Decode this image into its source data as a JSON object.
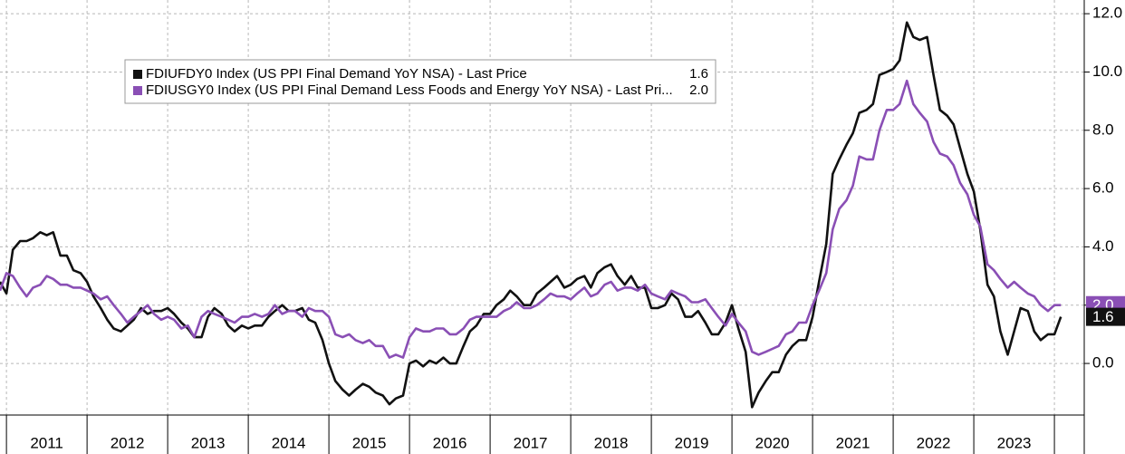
{
  "chart_data": {
    "type": "line",
    "x": [
      2010.92,
      2011.0,
      2011.08,
      2011.17,
      2011.25,
      2011.33,
      2011.42,
      2011.5,
      2011.58,
      2011.67,
      2011.75,
      2011.83,
      2011.92,
      2012.0,
      2012.08,
      2012.17,
      2012.25,
      2012.33,
      2012.42,
      2012.5,
      2012.58,
      2012.67,
      2012.75,
      2012.83,
      2012.92,
      2013.0,
      2013.08,
      2013.17,
      2013.25,
      2013.33,
      2013.42,
      2013.5,
      2013.58,
      2013.67,
      2013.75,
      2013.83,
      2013.92,
      2014.0,
      2014.08,
      2014.17,
      2014.25,
      2014.33,
      2014.42,
      2014.5,
      2014.58,
      2014.67,
      2014.75,
      2014.83,
      2014.92,
      2015.0,
      2015.08,
      2015.17,
      2015.25,
      2015.33,
      2015.42,
      2015.5,
      2015.58,
      2015.67,
      2015.75,
      2015.83,
      2015.92,
      2016.0,
      2016.08,
      2016.17,
      2016.25,
      2016.33,
      2016.42,
      2016.5,
      2016.58,
      2016.67,
      2016.75,
      2016.83,
      2016.92,
      2017.0,
      2017.08,
      2017.17,
      2017.25,
      2017.33,
      2017.42,
      2017.5,
      2017.58,
      2017.67,
      2017.75,
      2017.83,
      2017.92,
      2018.0,
      2018.08,
      2018.17,
      2018.25,
      2018.33,
      2018.42,
      2018.5,
      2018.58,
      2018.67,
      2018.75,
      2018.83,
      2018.92,
      2019.0,
      2019.08,
      2019.17,
      2019.25,
      2019.33,
      2019.42,
      2019.5,
      2019.58,
      2019.67,
      2019.75,
      2019.83,
      2019.92,
      2020.0,
      2020.08,
      2020.17,
      2020.25,
      2020.33,
      2020.42,
      2020.5,
      2020.58,
      2020.67,
      2020.75,
      2020.83,
      2020.92,
      2021.0,
      2021.08,
      2021.17,
      2021.25,
      2021.33,
      2021.42,
      2021.5,
      2021.58,
      2021.67,
      2021.75,
      2021.83,
      2021.92,
      2022.0,
      2022.08,
      2022.17,
      2022.25,
      2022.33,
      2022.42,
      2022.5,
      2022.58,
      2022.67,
      2022.75,
      2022.83,
      2022.92,
      2023.0,
      2023.08,
      2023.17,
      2023.25,
      2023.33,
      2023.42,
      2023.5,
      2023.58,
      2023.67,
      2023.75,
      2023.83,
      2023.92,
      2024.0,
      2024.08
    ],
    "series": [
      {
        "name": "FDIUFDY0 Index (US PPI Final Demand YoY NSA) - Last Price",
        "color": "#111111",
        "last_label": "1.6",
        "values": [
          2.8,
          2.4,
          3.9,
          4.2,
          4.2,
          4.3,
          4.5,
          4.4,
          4.5,
          3.7,
          3.7,
          3.2,
          3.1,
          2.8,
          2.3,
          1.9,
          1.5,
          1.2,
          1.1,
          1.3,
          1.5,
          1.9,
          1.7,
          1.8,
          1.8,
          1.9,
          1.7,
          1.4,
          1.2,
          0.9,
          0.9,
          1.6,
          1.9,
          1.7,
          1.3,
          1.1,
          1.3,
          1.2,
          1.3,
          1.3,
          1.6,
          1.8,
          2.0,
          1.8,
          1.8,
          1.9,
          1.5,
          1.4,
          0.8,
          0,
          -0.6,
          -0.9,
          -1.1,
          -0.9,
          -0.7,
          -0.8,
          -1.0,
          -1.1,
          -1.4,
          -1.2,
          -1.1,
          0,
          0.1,
          -0.1,
          0.1,
          0,
          0.2,
          0,
          0,
          0.6,
          1.1,
          1.3,
          1.7,
          1.7,
          2.0,
          2.2,
          2.5,
          2.3,
          2.0,
          2.0,
          2.4,
          2.6,
          2.8,
          3.0,
          2.6,
          2.7,
          2.9,
          3.0,
          2.6,
          3.1,
          3.3,
          3.4,
          3.0,
          2.7,
          3.0,
          2.6,
          2.6,
          1.9,
          1.9,
          2.0,
          2.4,
          2.2,
          1.6,
          1.6,
          1.8,
          1.4,
          1.0,
          1.0,
          1.4,
          2.0,
          1.2,
          0.4,
          -1.5,
          -1.0,
          -0.6,
          -0.3,
          -0.3,
          0.3,
          0.6,
          0.8,
          0.8,
          1.6,
          2.8,
          4.1,
          6.5,
          7.0,
          7.5,
          7.9,
          8.6,
          8.7,
          8.9,
          9.9,
          10.0,
          10.1,
          10.4,
          11.7,
          11.2,
          11.1,
          11.2,
          9.9,
          8.7,
          8.5,
          8.2,
          7.4,
          6.5,
          5.9,
          4.6,
          2.7,
          2.3,
          1.1,
          0.3,
          1.1,
          1.9,
          1.8,
          1.1,
          0.8,
          1.0,
          1.0,
          1.6
        ]
      },
      {
        "name": "FDIUSGY0 Index (US PPI Final Demand Less Foods and Energy YoY NSA) - Last Pri...",
        "color": "#8a4fb5",
        "last_label": "2.0",
        "values": [
          2.5,
          3.1,
          3.0,
          2.6,
          2.3,
          2.6,
          2.7,
          3.0,
          2.9,
          2.7,
          2.7,
          2.6,
          2.6,
          2.5,
          2.4,
          2.2,
          2.3,
          2.0,
          1.7,
          1.4,
          1.6,
          1.8,
          2.0,
          1.7,
          1.5,
          1.6,
          1.5,
          1.2,
          1.3,
          0.9,
          1.6,
          1.8,
          1.7,
          1.6,
          1.5,
          1.4,
          1.6,
          1.6,
          1.7,
          1.6,
          1.7,
          2.0,
          1.7,
          1.8,
          1.8,
          1.6,
          1.9,
          1.8,
          1.8,
          1.6,
          1.0,
          0.9,
          1.0,
          0.8,
          0.7,
          0.8,
          0.6,
          0.6,
          0.2,
          0.3,
          0.2,
          0.9,
          1.2,
          1.1,
          1.1,
          1.2,
          1.2,
          1.0,
          1.0,
          1.2,
          1.5,
          1.6,
          1.6,
          1.6,
          1.6,
          1.8,
          1.9,
          2.1,
          1.9,
          1.9,
          2.0,
          2.2,
          2.4,
          2.3,
          2.3,
          2.2,
          2.4,
          2.6,
          2.3,
          2.4,
          2.7,
          2.8,
          2.5,
          2.6,
          2.6,
          2.5,
          2.7,
          2.4,
          2.3,
          2.2,
          2.5,
          2.4,
          2.3,
          2.1,
          2.1,
          2.2,
          1.9,
          1.6,
          1.3,
          1.7,
          1.4,
          1.1,
          0.4,
          0.3,
          0.4,
          0.5,
          0.6,
          1.0,
          1.1,
          1.4,
          1.4,
          2.0,
          2.5,
          3.1,
          4.6,
          5.3,
          5.6,
          6.1,
          7.1,
          7.0,
          7.0,
          8.0,
          8.7,
          8.7,
          8.9,
          9.7,
          8.9,
          8.6,
          8.3,
          7.6,
          7.2,
          7.1,
          6.8,
          6.2,
          5.8,
          5.1,
          4.7,
          3.4,
          3.2,
          2.9,
          2.6,
          2.8,
          2.6,
          2.4,
          2.3,
          2.0,
          1.8,
          2.0,
          2.0
        ]
      }
    ],
    "xlim": [
      2010.92,
      2024.37
    ],
    "xticks": [
      2011,
      2012,
      2013,
      2014,
      2015,
      2016,
      2017,
      2018,
      2019,
      2020,
      2021,
      2022,
      2023
    ],
    "ylim": [
      -1.77,
      12.47
    ],
    "yticks": [
      {
        "value": 0,
        "label": "0.0"
      },
      {
        "value": 2,
        "label": "2.0"
      },
      {
        "value": 4,
        "label": "4.0"
      },
      {
        "value": 6,
        "label": "6.0"
      },
      {
        "value": 8,
        "label": "8.0"
      },
      {
        "value": 10,
        "label": "10.0"
      },
      {
        "value": 12,
        "label": "12.0"
      }
    ],
    "grid": true,
    "legend": "upper left"
  }
}
